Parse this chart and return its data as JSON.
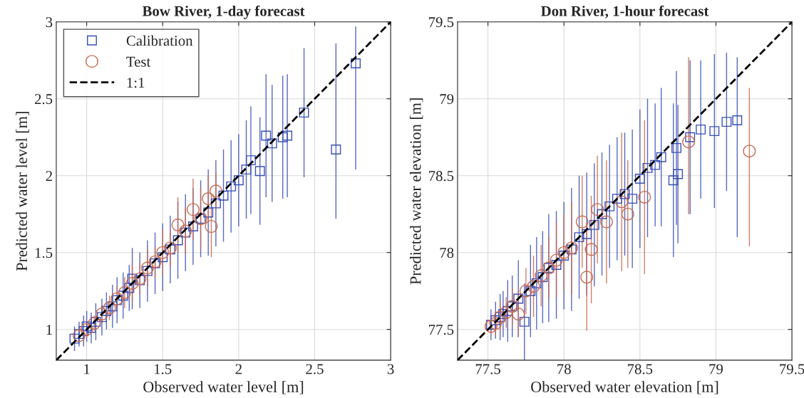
{
  "chart_data": [
    {
      "type": "scatter",
      "title": "Bow River, 1-day forecast",
      "xlabel": "Observed water level [m]",
      "ylabel": "Predicted water level [m]",
      "xlim": [
        0.8,
        3
      ],
      "ylim": [
        0.8,
        3
      ],
      "xticks": [
        1,
        1.5,
        2,
        2.5,
        3
      ],
      "yticks": [
        1,
        1.5,
        2,
        2.5,
        3
      ],
      "grid": true,
      "legend": "top left",
      "series": [
        {
          "name": "Calibration",
          "marker": "square",
          "color": "#3b4fb4",
          "x": [
            0.92,
            0.95,
            0.98,
            1.0,
            1.03,
            1.06,
            1.1,
            1.13,
            1.17,
            1.2,
            1.24,
            1.28,
            1.3,
            1.35,
            1.4,
            1.45,
            1.5,
            1.55,
            1.6,
            1.65,
            1.7,
            1.75,
            1.8,
            1.85,
            1.9,
            1.95,
            2.0,
            2.05,
            2.08,
            2.14,
            2.18,
            2.22,
            2.29,
            2.32,
            2.43,
            2.64,
            2.77
          ],
          "values": [
            0.94,
            0.97,
            0.99,
            1.02,
            1.01,
            1.05,
            1.08,
            1.12,
            1.15,
            1.19,
            1.22,
            1.27,
            1.33,
            1.32,
            1.38,
            1.43,
            1.47,
            1.52,
            1.58,
            1.63,
            1.67,
            1.72,
            1.76,
            1.82,
            1.87,
            1.93,
            1.97,
            2.04,
            2.1,
            2.03,
            2.26,
            2.21,
            2.25,
            2.26,
            2.41,
            2.17,
            2.73
          ],
          "errors": [
            0.08,
            0.08,
            0.1,
            0.1,
            0.1,
            0.12,
            0.12,
            0.12,
            0.14,
            0.15,
            0.15,
            0.15,
            0.2,
            0.18,
            0.2,
            0.2,
            0.22,
            0.22,
            0.25,
            0.25,
            0.25,
            0.25,
            0.28,
            0.28,
            0.3,
            0.3,
            0.3,
            0.32,
            0.35,
            0.35,
            0.4,
            0.38,
            0.4,
            0.4,
            0.42,
            [
              1.72,
              2.86
            ],
            [
              2.04,
              2.97
            ]
          ]
        },
        {
          "name": "Test",
          "marker": "circle",
          "color": "#c8694f",
          "x": [
            0.95,
            1.0,
            1.05,
            1.1,
            1.15,
            1.2,
            1.25,
            1.3,
            1.35,
            1.4,
            1.45,
            1.5,
            1.55,
            1.6,
            1.65,
            1.7,
            1.75,
            1.8,
            1.82,
            1.85
          ],
          "values": [
            0.96,
            1.0,
            1.04,
            1.1,
            1.14,
            1.2,
            1.24,
            1.3,
            1.33,
            1.4,
            1.44,
            1.5,
            1.53,
            1.68,
            1.64,
            1.78,
            1.72,
            1.85,
            1.67,
            1.9
          ],
          "errors": [
            0.04,
            0.05,
            0.05,
            0.06,
            0.08,
            0.08,
            0.1,
            0.12,
            0.1,
            0.12,
            0.1,
            0.15,
            0.12,
            0.18,
            0.15,
            0.2,
            0.2,
            0.15,
            0.2,
            0.12
          ]
        },
        {
          "name": "1:1",
          "type": "line",
          "line_style": "dashed",
          "marker": "none",
          "color": "#000000",
          "x": [
            0.8,
            3
          ],
          "values": [
            0.8,
            3
          ]
        }
      ]
    },
    {
      "type": "scatter",
      "title": "Don River, 1-hour forecast",
      "xlabel": "Observed water elevation [m]",
      "ylabel": "Predicted water elevation [m]",
      "xlim": [
        77.3,
        79.5
      ],
      "ylim": [
        77.3,
        79.5
      ],
      "xticks": [
        77.5,
        78,
        78.5,
        79,
        79.5
      ],
      "yticks": [
        77.5,
        78,
        78.5,
        79,
        79.5
      ],
      "grid": true,
      "series": [
        {
          "marker": "square",
          "color": "#3b4fb4",
          "x": [
            77.52,
            77.55,
            77.58,
            77.6,
            77.63,
            77.66,
            77.7,
            77.74,
            77.78,
            77.82,
            77.86,
            77.9,
            77.95,
            78.0,
            78.05,
            78.1,
            78.15,
            78.2,
            78.25,
            78.3,
            78.35,
            78.4,
            78.45,
            78.5,
            78.55,
            78.6,
            78.64,
            78.72,
            78.74,
            78.75,
            78.83,
            78.9,
            78.99,
            79.07,
            79.14
          ],
          "values": [
            77.53,
            77.56,
            77.58,
            77.6,
            77.62,
            77.65,
            77.7,
            77.55,
            77.75,
            77.8,
            77.84,
            77.9,
            77.92,
            77.98,
            78.02,
            78.1,
            78.12,
            78.18,
            78.25,
            78.3,
            78.35,
            78.38,
            78.35,
            78.48,
            78.55,
            78.57,
            78.62,
            78.47,
            78.68,
            78.51,
            78.75,
            78.8,
            78.79,
            78.85,
            78.86
          ],
          "errors": [
            0.1,
            0.12,
            0.15,
            0.15,
            0.2,
            0.2,
            0.25,
            0.25,
            0.3,
            0.3,
            0.3,
            0.35,
            0.35,
            0.35,
            0.4,
            0.4,
            0.4,
            0.4,
            0.4,
            0.4,
            0.4,
            0.4,
            0.45,
            0.45,
            0.45,
            0.4,
            0.45,
            0.5,
            0.5,
            0.45,
            0.5,
            0.45,
            0.5,
            0.45,
            [
              78.1,
              79.27
            ]
          ]
        },
        {
          "marker": "circle",
          "color": "#c8694f",
          "x": [
            77.52,
            77.55,
            77.58,
            77.62,
            77.66,
            77.7,
            77.75,
            77.8,
            77.85,
            77.9,
            77.95,
            78.0,
            78.05,
            78.12,
            78.15,
            78.18,
            78.22,
            78.28,
            78.38,
            78.42,
            78.53,
            78.82,
            79.22
          ],
          "values": [
            77.52,
            77.54,
            77.58,
            77.61,
            77.65,
            77.6,
            77.75,
            77.78,
            77.85,
            77.9,
            77.95,
            78.0,
            78.03,
            78.2,
            77.84,
            78.02,
            78.28,
            78.2,
            78.33,
            78.25,
            78.36,
            78.72,
            78.66
          ],
          "errors": [
            0.05,
            0.08,
            0.1,
            0.1,
            0.12,
            0.15,
            0.15,
            0.2,
            0.2,
            0.2,
            0.25,
            0.25,
            0.3,
            0.3,
            0.35,
            0.35,
            0.35,
            0.4,
            0.45,
            0.35,
            0.5,
            [
              78.25,
              79.27
            ],
            [
              78.04,
              79.07
            ]
          ]
        },
        {
          "type": "line",
          "line_style": "dashed",
          "marker": "none",
          "color": "#000000",
          "x": [
            77.3,
            79.5
          ],
          "values": [
            77.3,
            79.5
          ]
        }
      ]
    }
  ]
}
